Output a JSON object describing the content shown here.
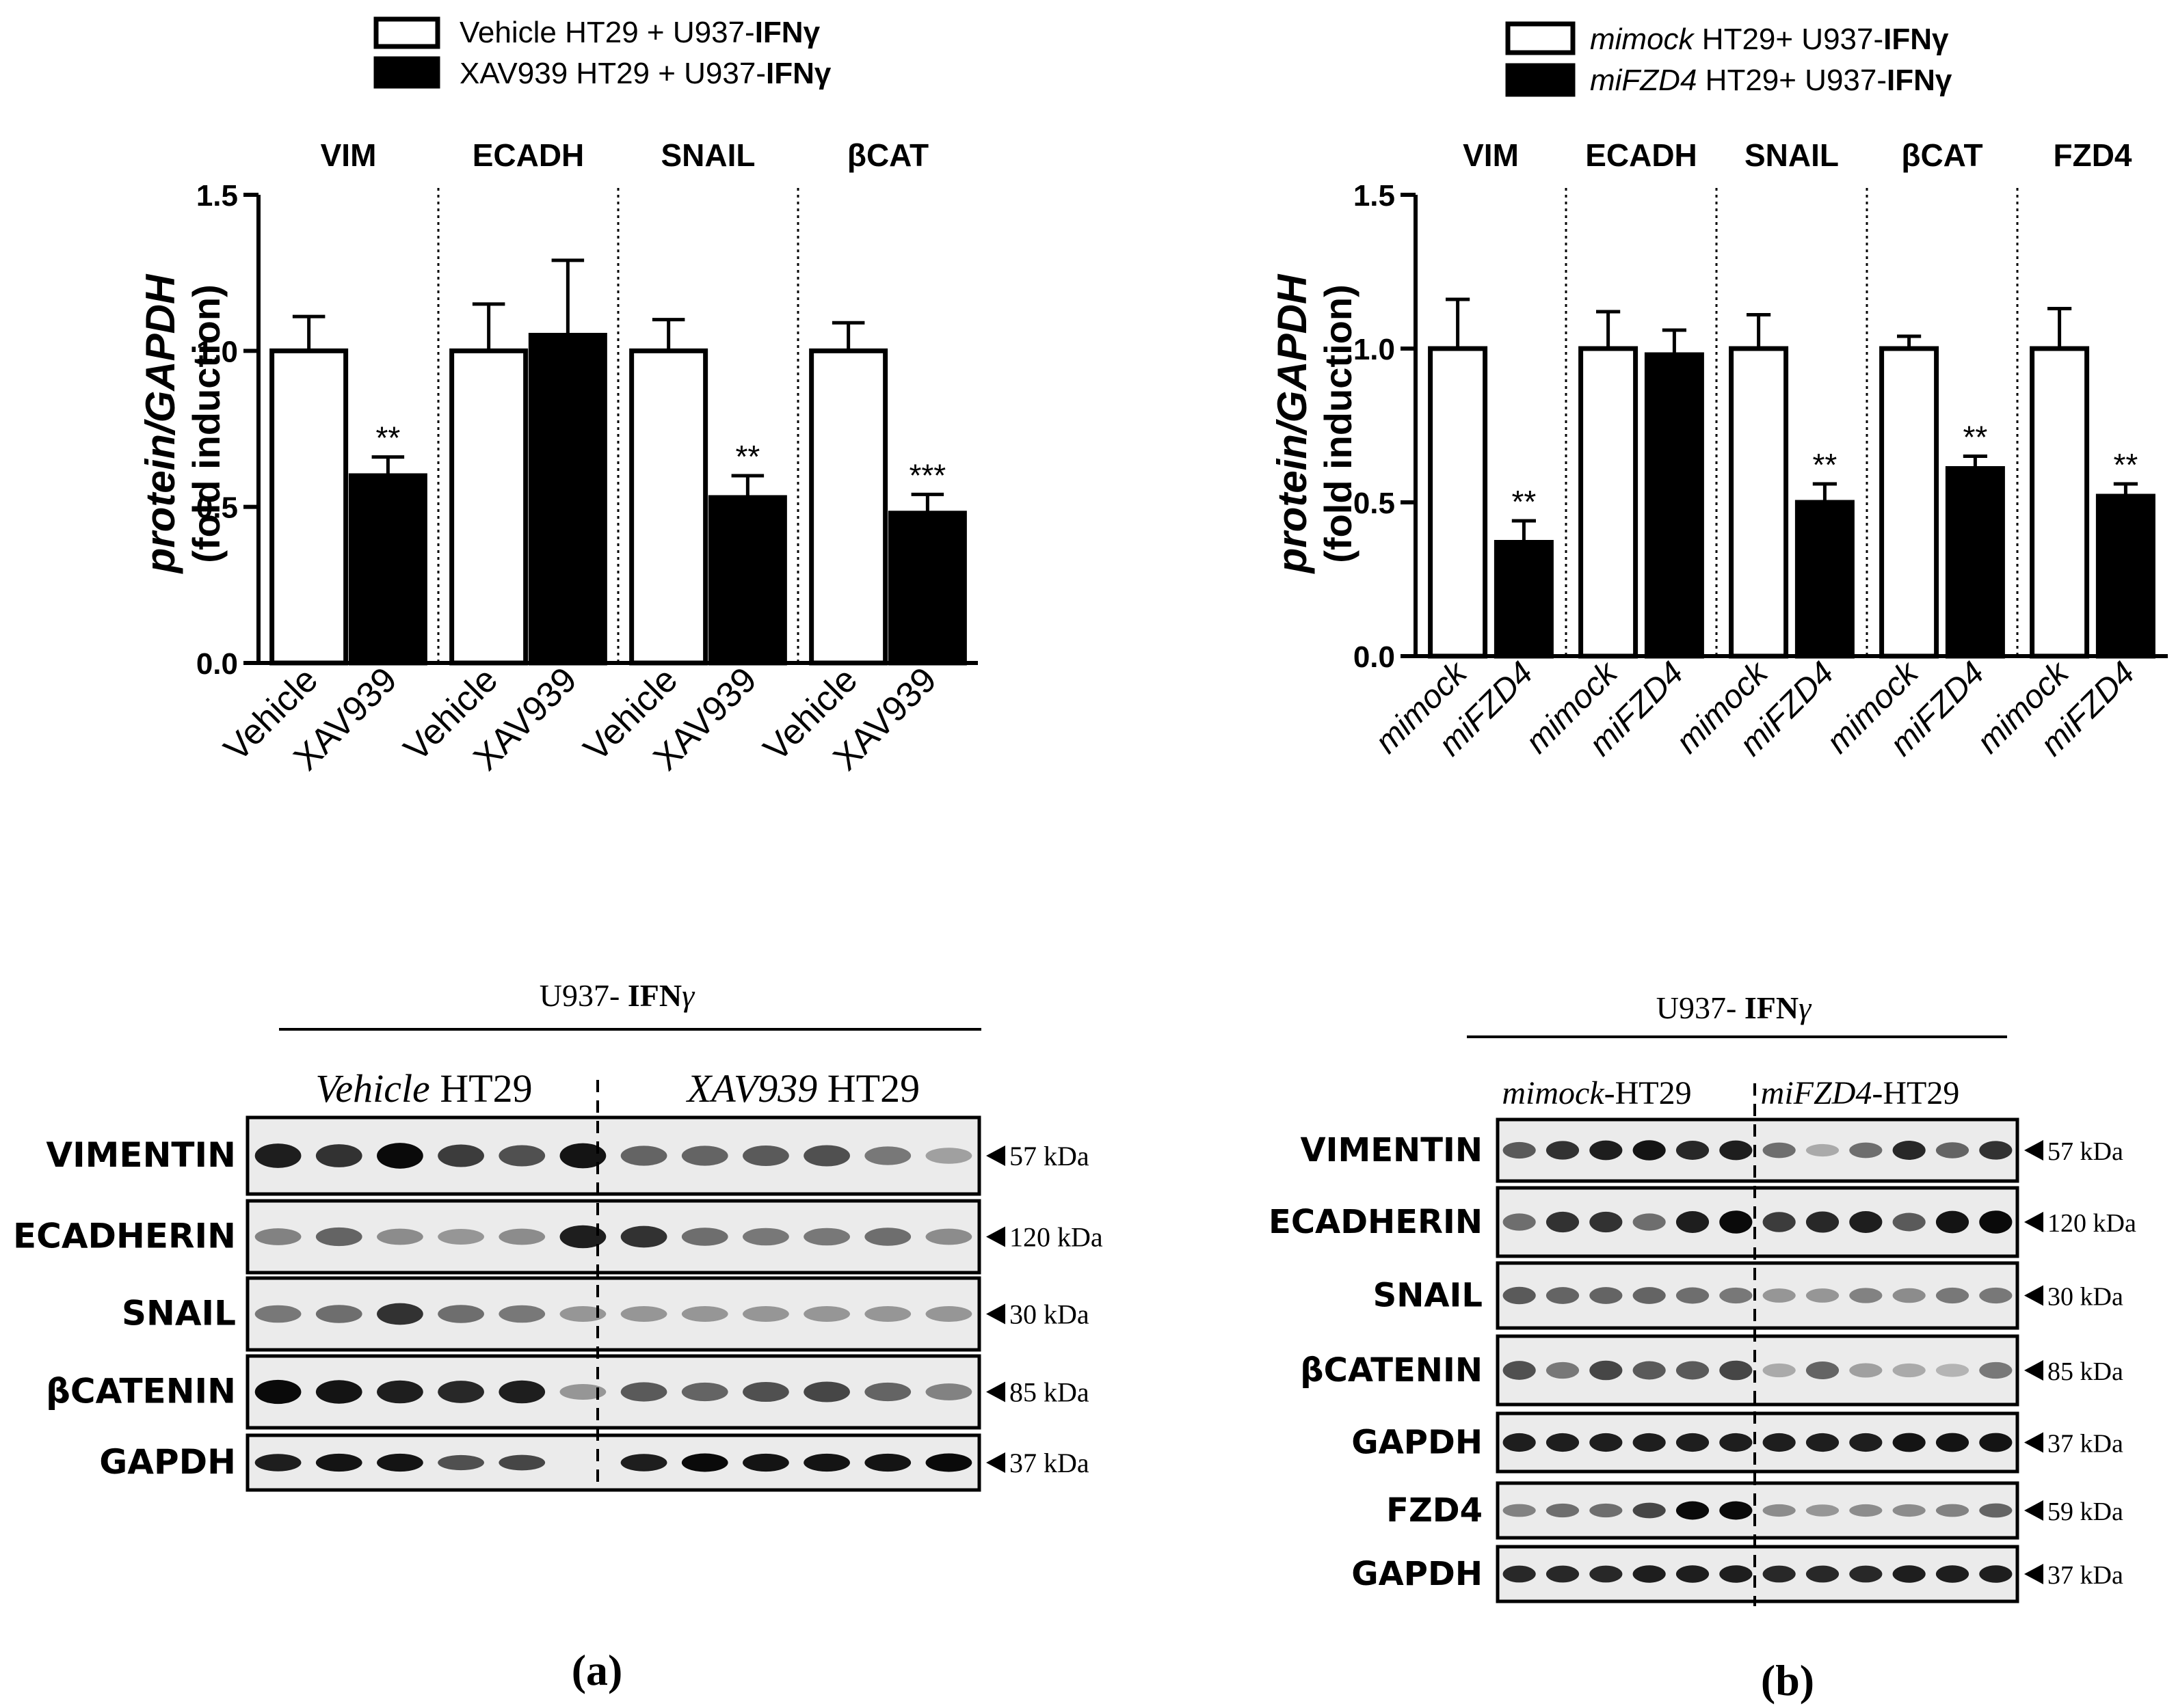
{
  "chart_data": [
    {
      "type": "bar",
      "panel": "a",
      "legend": [
        {
          "fill": "#ffffff",
          "label_plain": "Vehicle HT29 + U937-",
          "label_bold": "IFNγ"
        },
        {
          "fill": "#000000",
          "label_plain": "XAV939 HT29 + U937-",
          "label_bold": "IFNγ"
        }
      ],
      "ylabel_line1": "protein/GAPDH",
      "ylabel_line2": "(fold induction)",
      "ylim": [
        0,
        1.5
      ],
      "yticks": [
        "0.0",
        "0.5",
        "1.0",
        "1.5"
      ],
      "groups": [
        {
          "name": "VIM",
          "categories": [
            "Vehicle",
            "XAV939"
          ],
          "values": [
            1.0,
            0.6
          ],
          "errors": [
            0.11,
            0.06
          ],
          "sig": [
            "",
            "**"
          ]
        },
        {
          "name": "ECADH",
          "categories": [
            "Vehicle",
            "XAV939"
          ],
          "values": [
            1.0,
            1.05
          ],
          "errors": [
            0.15,
            0.24
          ],
          "sig": [
            "",
            ""
          ]
        },
        {
          "name": "SNAIL",
          "categories": [
            "Vehicle",
            "XAV939"
          ],
          "values": [
            1.0,
            0.53
          ],
          "errors": [
            0.1,
            0.07
          ],
          "sig": [
            "",
            "**"
          ]
        },
        {
          "name": "βCAT",
          "categories": [
            "Vehicle",
            "XAV939"
          ],
          "values": [
            1.0,
            0.48
          ],
          "errors": [
            0.09,
            0.06
          ],
          "sig": [
            "",
            "***"
          ]
        }
      ]
    },
    {
      "type": "bar",
      "panel": "b",
      "legend": [
        {
          "fill": "#ffffff",
          "label_italic": "mimock",
          "label_plain": " HT29+ U937-",
          "label_bold": "IFNγ"
        },
        {
          "fill": "#000000",
          "label_italic": "miFZD4",
          "label_plain": " HT29+ U937-",
          "label_bold": "IFNγ"
        }
      ],
      "ylabel_line1": "protein/GAPDH",
      "ylabel_line2": "(fold induction)",
      "ylim": [
        0,
        1.5
      ],
      "yticks": [
        "0.0",
        "0.5",
        "1.0",
        "1.5"
      ],
      "groups": [
        {
          "name": "VIM",
          "categories": [
            "mimock",
            "miFZD4"
          ],
          "values": [
            1.0,
            0.37
          ],
          "errors": [
            0.16,
            0.07
          ],
          "sig": [
            "",
            "**"
          ]
        },
        {
          "name": "ECADH",
          "categories": [
            "mimock",
            "miFZD4"
          ],
          "values": [
            1.0,
            0.98
          ],
          "errors": [
            0.12,
            0.08
          ],
          "sig": [
            "",
            ""
          ]
        },
        {
          "name": "SNAIL",
          "categories": [
            "mimock",
            "miFZD4"
          ],
          "values": [
            1.0,
            0.5
          ],
          "errors": [
            0.11,
            0.06
          ],
          "sig": [
            "",
            "**"
          ]
        },
        {
          "name": "βCAT",
          "categories": [
            "mimock",
            "miFZD4"
          ],
          "values": [
            1.0,
            0.61
          ],
          "errors": [
            0.04,
            0.04
          ],
          "sig": [
            "",
            "**"
          ]
        },
        {
          "name": "FZD4",
          "categories": [
            "mimock",
            "miFZD4"
          ],
          "values": [
            1.0,
            0.52
          ],
          "errors": [
            0.13,
            0.04
          ],
          "sig": [
            "",
            "**"
          ]
        }
      ]
    }
  ],
  "blots": [
    {
      "panel": "a",
      "treatment_prefix": "U937- ",
      "treatment_bold": "IFN",
      "treatment_greek": "γ",
      "groups": [
        {
          "italic": "Vehicle",
          "plain": " HT29"
        },
        {
          "italic": "XAV939",
          "plain": " HT29"
        }
      ],
      "rows": [
        {
          "name": "VIMENTIN",
          "kda": "57 kDa",
          "lane_intensity": [
            0.9,
            0.8,
            1.0,
            0.75,
            0.65,
            0.95,
            0.55,
            0.55,
            0.6,
            0.65,
            0.45,
            0.25
          ]
        },
        {
          "name": "ECADHERIN",
          "kda": "120 kDa",
          "lane_intensity": [
            0.4,
            0.55,
            0.35,
            0.3,
            0.35,
            0.9,
            0.8,
            0.5,
            0.45,
            0.45,
            0.5,
            0.35
          ]
        },
        {
          "name": "SNAIL",
          "kda": "30 kDa",
          "lane_intensity": [
            0.45,
            0.5,
            0.8,
            0.5,
            0.45,
            0.3,
            0.3,
            0.3,
            0.3,
            0.3,
            0.3,
            0.3
          ]
        },
        {
          "name": "βCATENIN",
          "kda": "85 kDa",
          "lane_intensity": [
            1.0,
            0.95,
            0.9,
            0.85,
            0.9,
            0.3,
            0.6,
            0.55,
            0.65,
            0.7,
            0.55,
            0.4
          ]
        },
        {
          "name": "GAPDH",
          "kda": "37 kDa",
          "lane_intensity": [
            0.9,
            0.95,
            0.95,
            0.65,
            0.7,
            0.0,
            0.9,
            1.0,
            0.95,
            0.95,
            0.95,
            1.0
          ]
        }
      ]
    },
    {
      "panel": "b",
      "treatment_prefix": "U937- ",
      "treatment_bold": "IFN",
      "treatment_greek": "γ",
      "groups": [
        {
          "italic": "mimock",
          "plain": "-HT29"
        },
        {
          "italic": "miFZD4",
          "plain": "-HT29"
        }
      ],
      "rows": [
        {
          "name": "VIMENTIN",
          "kda": "57 kDa",
          "lane_intensity": [
            0.6,
            0.8,
            0.9,
            0.95,
            0.85,
            0.9,
            0.5,
            0.2,
            0.5,
            0.85,
            0.55,
            0.8
          ]
        },
        {
          "name": "ECADHERIN",
          "kda": "120 kDa",
          "lane_intensity": [
            0.5,
            0.8,
            0.8,
            0.5,
            0.9,
            1.0,
            0.75,
            0.85,
            0.9,
            0.6,
            0.95,
            1.0
          ]
        },
        {
          "name": "SNAIL",
          "kda": "30 kDa",
          "lane_intensity": [
            0.6,
            0.55,
            0.55,
            0.55,
            0.5,
            0.45,
            0.3,
            0.3,
            0.4,
            0.35,
            0.45,
            0.45
          ]
        },
        {
          "name": "βCATENIN",
          "kda": "85 kDa",
          "lane_intensity": [
            0.65,
            0.45,
            0.7,
            0.6,
            0.6,
            0.7,
            0.2,
            0.55,
            0.25,
            0.2,
            0.15,
            0.45
          ]
        },
        {
          "name": "GAPDH",
          "kda": "37 kDa",
          "lane_intensity": [
            0.9,
            0.9,
            0.9,
            0.9,
            0.9,
            0.9,
            0.9,
            0.9,
            0.9,
            0.95,
            0.95,
            0.95
          ]
        },
        {
          "name": "FZD4",
          "kda": "59 kDa",
          "lane_intensity": [
            0.4,
            0.5,
            0.5,
            0.7,
            1.0,
            1.0,
            0.35,
            0.3,
            0.35,
            0.35,
            0.4,
            0.55
          ]
        },
        {
          "name": "GAPDH",
          "kda": "37 kDa",
          "lane_intensity": [
            0.85,
            0.85,
            0.85,
            0.9,
            0.9,
            0.9,
            0.85,
            0.85,
            0.85,
            0.9,
            0.9,
            0.9
          ]
        }
      ]
    }
  ],
  "captions": {
    "a": "(a)",
    "b": "(b)"
  }
}
